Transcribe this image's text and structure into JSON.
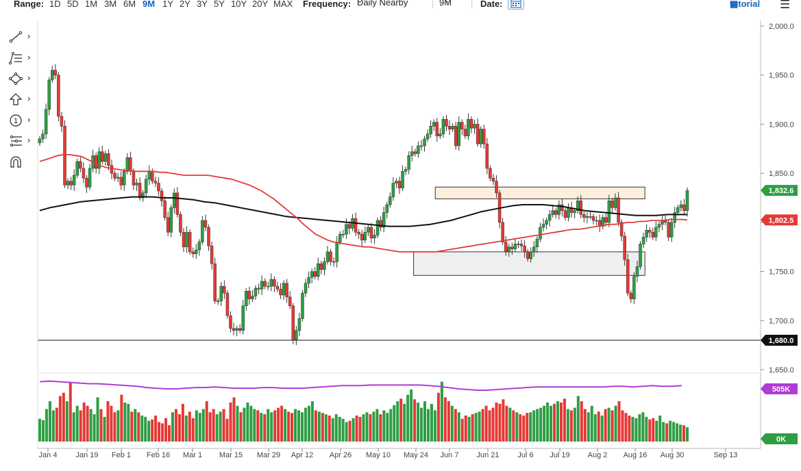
{
  "toolbar": {
    "range_label": "Range:",
    "ranges": [
      "1D",
      "5D",
      "1M",
      "3M",
      "6M",
      "9M",
      "1Y",
      "2Y",
      "3Y",
      "5Y",
      "10Y",
      "20Y",
      "MAX"
    ],
    "active_range": "9M",
    "frequency_label": "Frequency:",
    "frequency_value": "Daily Nearby",
    "period_value": "9M",
    "date_label": "Date:",
    "tutorial_label": "tutorial",
    "accent_color": "#1565c0"
  },
  "side_tools": [
    "line-draw-icon",
    "fibonacci-icon",
    "shapes-icon",
    "arrow-icon",
    "annotation-number-icon",
    "pitchfork-icon",
    "magnet-icon"
  ],
  "chart_data": {
    "type": "candlestick",
    "x_ticks": [
      "Jan 4",
      "Jan 19",
      "Feb 1",
      "Feb 16",
      "Mar 1",
      "Mar 15",
      "Mar 29",
      "Apr 12",
      "Apr 26",
      "May 10",
      "May 24",
      "Jun 7",
      "Jun 21",
      "Jul 6",
      "Jul 19",
      "Aug 2",
      "Aug 16",
      "Aug 30",
      "Sep 13"
    ],
    "y_ticks": [
      "2,000.0",
      "1,950.0",
      "1,900.0",
      "1,850.0",
      "1,800.0",
      "1,750.0",
      "1,700.0",
      "1,650.0"
    ],
    "y_range": [
      1650,
      2000
    ],
    "price_labels": [
      {
        "text": "1,832.6",
        "value": 1832.6,
        "color": "#2e9e44"
      },
      {
        "text": "1,802.5",
        "value": 1802.5,
        "color": "#e53935"
      },
      {
        "text": "1,680.0",
        "value": 1680.0,
        "color": "#111111"
      }
    ],
    "horizontal_line": 1680.0,
    "zones": [
      {
        "from_index": 0.52,
        "to_index": 0.84,
        "low": 1746,
        "high": 1770,
        "color": "#e8e8e8"
      },
      {
        "from_index": 0.55,
        "to_index": 0.84,
        "low": 1824,
        "high": 1836,
        "color": "#fbe9cf"
      }
    ],
    "close": [
      1885,
      1890,
      1915,
      1945,
      1955,
      1950,
      1908,
      1898,
      1838,
      1842,
      1838,
      1848,
      1862,
      1855,
      1845,
      1836,
      1855,
      1868,
      1855,
      1872,
      1862,
      1870,
      1858,
      1850,
      1845,
      1846,
      1838,
      1852,
      1866,
      1852,
      1838,
      1840,
      1825,
      1830,
      1844,
      1852,
      1842,
      1840,
      1832,
      1822,
      1805,
      1790,
      1815,
      1830,
      1808,
      1790,
      1775,
      1790,
      1770,
      1768,
      1772,
      1780,
      1802,
      1795,
      1776,
      1758,
      1720,
      1720,
      1735,
      1728,
      1705,
      1692,
      1690,
      1692,
      1690,
      1715,
      1730,
      1722,
      1725,
      1733,
      1732,
      1740,
      1735,
      1735,
      1742,
      1735,
      1732,
      1726,
      1738,
      1724,
      1715,
      1680,
      1690,
      1702,
      1728,
      1738,
      1744,
      1750,
      1745,
      1758,
      1752,
      1760,
      1770,
      1760,
      1760,
      1780,
      1788,
      1788,
      1798,
      1794,
      1804,
      1790,
      1788,
      1782,
      1790,
      1795,
      1784,
      1787,
      1802,
      1795,
      1810,
      1818,
      1826,
      1840,
      1842,
      1835,
      1852,
      1854,
      1868,
      1872,
      1870,
      1878,
      1878,
      1885,
      1890,
      1898,
      1902,
      1888,
      1890,
      1905,
      1898,
      1895,
      1898,
      1878,
      1902,
      1895,
      1888,
      1905,
      1896,
      1900,
      1880,
      1895,
      1880,
      1855,
      1845,
      1842,
      1830,
      1800,
      1780,
      1770,
      1775,
      1773,
      1778,
      1778,
      1776,
      1770,
      1763,
      1770,
      1775,
      1783,
      1795,
      1798,
      1802,
      1808,
      1812,
      1808,
      1818,
      1812,
      1805,
      1815,
      1810,
      1812,
      1822,
      1808,
      1805,
      1806,
      1806,
      1802,
      1802,
      1796,
      1805,
      1800,
      1822,
      1815,
      1825,
      1800,
      1786,
      1762,
      1728,
      1722,
      1745,
      1755,
      1778,
      1785,
      1792,
      1790,
      1785,
      1795,
      1798,
      1802,
      1800,
      1785,
      1800,
      1810,
      1815,
      1818,
      1812,
      1832.6
    ],
    "sma_red": [
      1862,
      1864,
      1866,
      1868,
      1869,
      1869,
      1868,
      1867,
      1864,
      1861,
      1858,
      1856,
      1855,
      1854,
      1853,
      1853,
      1852,
      1852,
      1852,
      1852,
      1851,
      1851,
      1850,
      1849,
      1848,
      1848,
      1848,
      1848,
      1848,
      1847,
      1846,
      1845,
      1844,
      1842,
      1840,
      1838,
      1835,
      1832,
      1828,
      1824,
      1819,
      1814,
      1809,
      1804,
      1798,
      1793,
      1788,
      1785,
      1782,
      1780,
      1779,
      1778,
      1777,
      1776,
      1775,
      1775,
      1774,
      1773,
      1772,
      1771,
      1770,
      1770,
      1770,
      1770,
      1770,
      1770,
      1770,
      1771,
      1772,
      1773,
      1774,
      1775,
      1776,
      1777,
      1778,
      1779,
      1780,
      1781,
      1782,
      1783,
      1784,
      1785,
      1786,
      1787,
      1788,
      1789,
      1790,
      1791,
      1792,
      1793,
      1793,
      1794,
      1795,
      1796,
      1797,
      1798,
      1798,
      1799,
      1800,
      1800,
      1801,
      1801,
      1802,
      1802,
      1802,
      1803,
      1803,
      1803,
      1802.5
    ],
    "sma_black": [
      1812,
      1815,
      1817,
      1819,
      1821,
      1822,
      1823,
      1824,
      1825,
      1826,
      1826,
      1826,
      1825,
      1825,
      1824,
      1823,
      1821,
      1820,
      1818,
      1816,
      1814,
      1812,
      1810,
      1808,
      1806,
      1805,
      1804,
      1803,
      1802,
      1801,
      1800,
      1799,
      1798,
      1797,
      1796,
      1796,
      1796,
      1797,
      1798,
      1800,
      1802,
      1805,
      1808,
      1811,
      1813,
      1815,
      1817,
      1818,
      1818,
      1818,
      1817,
      1816,
      1814,
      1812,
      1811,
      1810,
      1809,
      1808,
      1807,
      1807,
      1807,
      1808,
      1808,
      1808
    ],
    "volume_labels": [
      {
        "text": "505K",
        "color": "#b13bd6"
      },
      {
        "text": "0K",
        "color": "#2e9e44"
      }
    ],
    "volume_ratio": [
      0.35,
      0.33,
      0.5,
      0.62,
      0.48,
      0.52,
      0.7,
      0.75,
      0.62,
      0.9,
      0.45,
      0.55,
      0.48,
      0.6,
      0.55,
      0.5,
      0.42,
      0.68,
      0.5,
      0.38,
      0.62,
      0.55,
      0.45,
      0.48,
      0.72,
      0.6,
      0.58,
      0.46,
      0.5,
      0.45,
      0.4,
      0.38,
      0.32,
      0.34,
      0.4,
      0.3,
      0.28,
      0.36,
      0.25,
      0.45,
      0.5,
      0.42,
      0.58,
      0.4,
      0.46,
      0.36,
      0.48,
      0.44,
      0.5,
      0.62,
      0.45,
      0.5,
      0.42,
      0.46,
      0.5,
      0.35,
      0.6,
      0.68,
      0.55,
      0.45,
      0.52,
      0.6,
      0.55,
      0.5,
      0.48,
      0.44,
      0.42,
      0.5,
      0.45,
      0.48,
      0.52,
      0.55,
      0.5,
      0.46,
      0.44,
      0.5,
      0.48,
      0.45,
      0.52,
      0.55,
      0.62,
      0.48,
      0.46,
      0.44,
      0.42,
      0.4,
      0.36,
      0.42,
      0.38,
      0.35,
      0.3,
      0.32,
      0.36,
      0.4,
      0.38,
      0.42,
      0.45,
      0.42,
      0.46,
      0.5,
      0.42,
      0.48,
      0.44,
      0.5,
      0.56,
      0.62,
      0.66,
      0.58,
      0.72,
      0.8,
      0.65,
      0.6,
      0.52,
      0.62,
      0.5,
      0.58,
      0.48,
      0.75,
      0.92,
      0.68,
      0.62,
      0.55,
      0.5,
      0.45,
      0.35,
      0.4,
      0.38,
      0.42,
      0.44,
      0.46,
      0.5,
      0.55,
      0.48,
      0.52,
      0.6,
      0.58,
      0.65,
      0.55,
      0.52,
      0.48,
      0.45,
      0.42,
      0.4,
      0.44,
      0.45,
      0.48,
      0.5,
      0.52,
      0.55,
      0.6,
      0.55,
      0.58,
      0.62,
      0.6,
      0.66,
      0.5,
      0.48,
      0.52,
      0.7,
      0.62,
      0.5,
      0.45,
      0.55,
      0.42,
      0.46,
      0.4,
      0.5,
      0.52,
      0.48,
      0.55,
      0.62,
      0.48,
      0.44,
      0.4,
      0.38,
      0.36,
      0.42,
      0.45,
      0.38,
      0.34,
      0.36,
      0.32,
      0.4,
      0.3,
      0.28,
      0.32,
      0.3,
      0.28,
      0.26,
      0.25,
      0.22
    ],
    "volume_ma_ratio": [
      0.92,
      0.93,
      0.92,
      0.91,
      0.9,
      0.89,
      0.89,
      0.88,
      0.87,
      0.86,
      0.85,
      0.83,
      0.82,
      0.81,
      0.81,
      0.82,
      0.83,
      0.83,
      0.84,
      0.83,
      0.82,
      0.82,
      0.82,
      0.83,
      0.83,
      0.82,
      0.82,
      0.82,
      0.83,
      0.84,
      0.85,
      0.86,
      0.86,
      0.86,
      0.87,
      0.87,
      0.87,
      0.87,
      0.87,
      0.87,
      0.86,
      0.85,
      0.83,
      0.81,
      0.8,
      0.79,
      0.79,
      0.8,
      0.81,
      0.82,
      0.83,
      0.84,
      0.84,
      0.84,
      0.84,
      0.84,
      0.84,
      0.84,
      0.84,
      0.85,
      0.85,
      0.84,
      0.85,
      0.86,
      0.85,
      0.85,
      0.86
    ]
  }
}
